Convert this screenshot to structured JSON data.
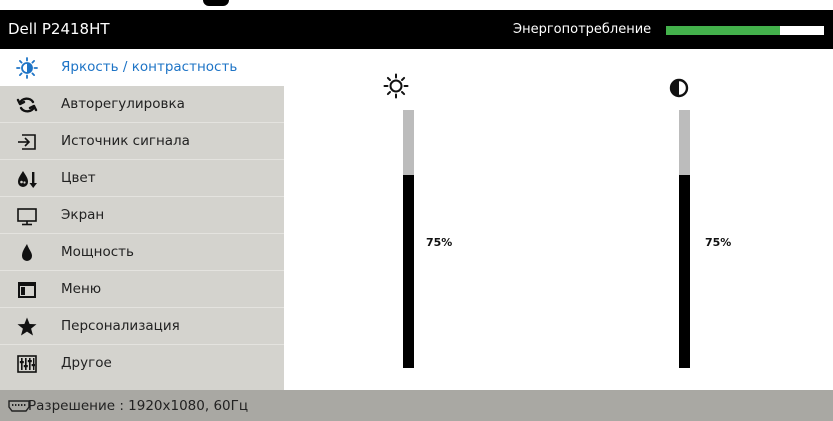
{
  "title": {
    "model": "Dell P2418HT",
    "energy_label": "Энергопотребление",
    "energy_fill_fraction": 0.72,
    "energy_color": "#43b14b"
  },
  "menu": {
    "active_color": "#1e74c6",
    "items": [
      {
        "label": "Яркость / контрастность",
        "icon": "brightness-icon",
        "active": true
      },
      {
        "label": "Авторегулировка",
        "icon": "auto-adjust-icon",
        "active": false
      },
      {
        "label": "Источник сигнала",
        "icon": "input-source-icon",
        "active": false
      },
      {
        "label": "Цвет",
        "icon": "color-icon",
        "active": false
      },
      {
        "label": "Экран",
        "icon": "display-icon",
        "active": false
      },
      {
        "label": "Мощность",
        "icon": "power-icon",
        "active": false
      },
      {
        "label": "Меню",
        "icon": "menu-icon",
        "active": false
      },
      {
        "label": "Персонализация",
        "icon": "star-icon",
        "active": false
      },
      {
        "label": "Другое",
        "icon": "others-icon",
        "active": false
      }
    ]
  },
  "content": {
    "brightness": {
      "icon": "sun-icon",
      "value": 75,
      "value_text": "75%"
    },
    "contrast": {
      "icon": "contrast-icon",
      "value": 75,
      "value_text": "75%"
    }
  },
  "status": {
    "icon": "hdmi-icon",
    "text": "Разрешение : 1920x1080, 60Гц"
  }
}
